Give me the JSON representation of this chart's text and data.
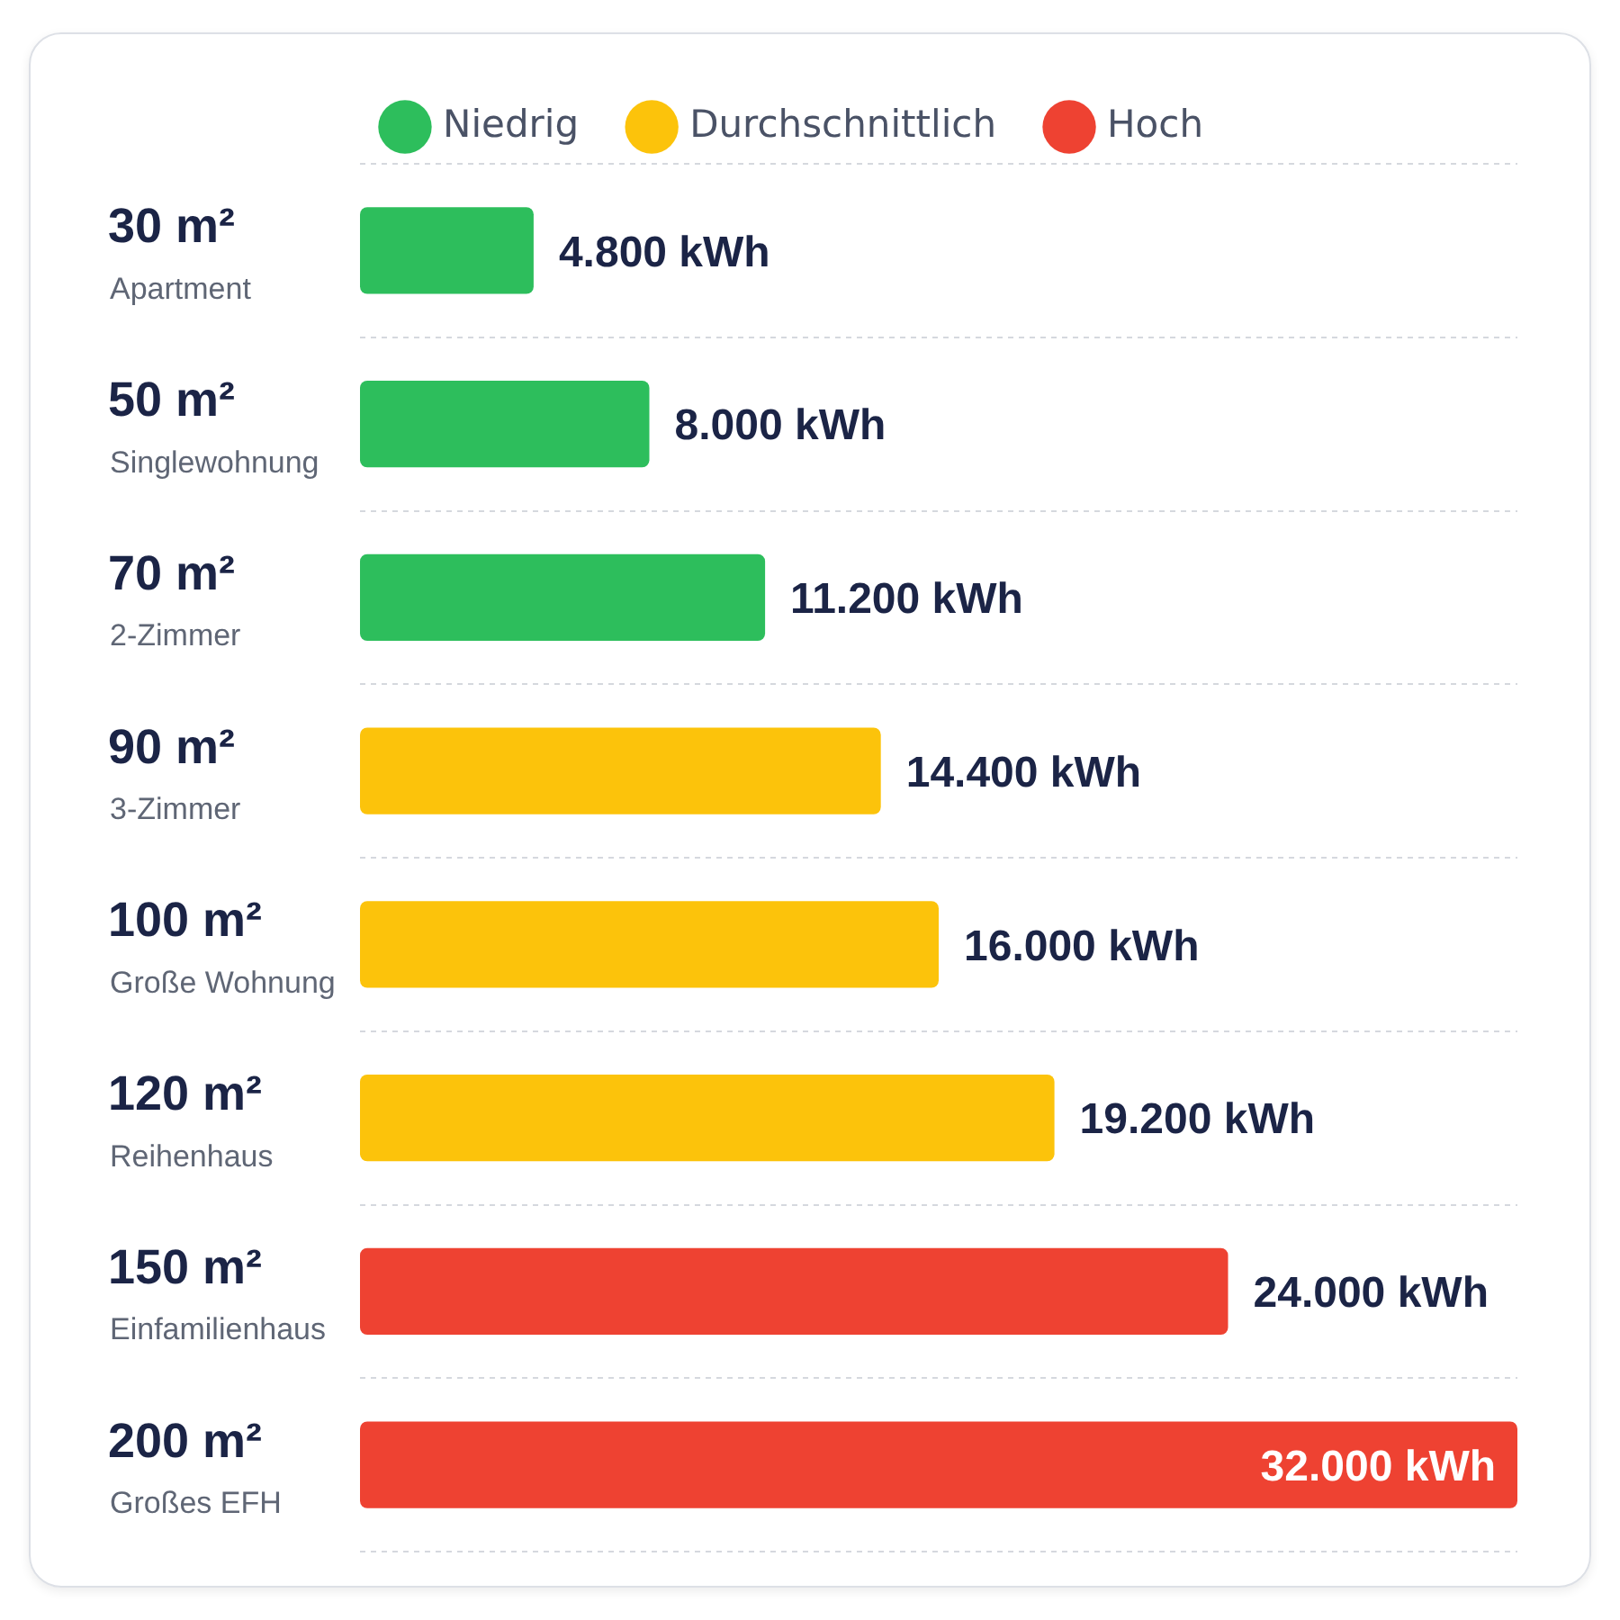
{
  "chart_data": {
    "type": "bar",
    "orientation": "horizontal",
    "stacked": true,
    "categories": [
      "30 m²\nApartment",
      "50 m²\nSinglewohnung",
      "70 m²\n2-Zimmer",
      "90 m²\n3-Zimmer",
      "100 m²\nGroße Wohnung",
      "120 m²\nReihenhaus",
      "150 m²\nEinfamilienhaus",
      "200 m²\nGroßes EFH"
    ],
    "series": [
      {
        "name": "Niedrig",
        "color": "#2dbe5c",
        "values": [
          4800,
          8000,
          11200,
          null,
          null,
          null,
          null,
          null
        ],
        "value_labels": [
          "4.800 kWh",
          "8.000 kWh",
          "11.200 kWh",
          null,
          null,
          null,
          null,
          null
        ]
      },
      {
        "name": "Durchschnittlich",
        "color": "#fcc30b",
        "values": [
          null,
          null,
          null,
          14400,
          16000,
          19200,
          null,
          null
        ],
        "value_labels": [
          null,
          null,
          null,
          "14.400 kWh",
          "16.000 kWh",
          "19.200 kWh",
          null,
          null
        ]
      },
      {
        "name": "Hoch",
        "color": "#ee4232",
        "values": [
          null,
          null,
          null,
          null,
          null,
          null,
          24000,
          32000
        ],
        "value_labels": [
          null,
          null,
          null,
          null,
          null,
          null,
          "24.000 kWh",
          "32.000 kWh"
        ]
      }
    ],
    "grid": "y",
    "legend": "top"
  }
}
